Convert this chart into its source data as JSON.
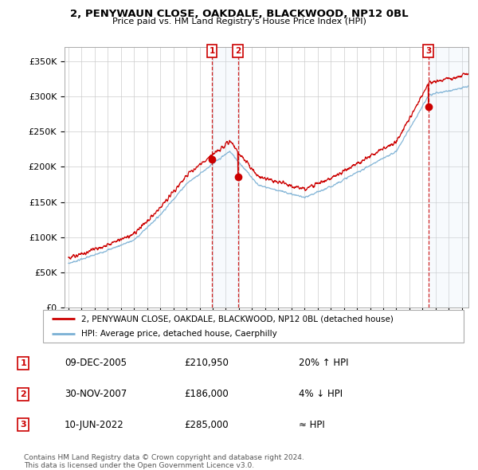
{
  "title": "2, PENYWAUN CLOSE, OAKDALE, BLACKWOOD, NP12 0BL",
  "subtitle": "Price paid vs. HM Land Registry's House Price Index (HPI)",
  "legend_line1": "2, PENYWAUN CLOSE, OAKDALE, BLACKWOOD, NP12 0BL (detached house)",
  "legend_line2": "HPI: Average price, detached house, Caerphilly",
  "footer": "Contains HM Land Registry data © Crown copyright and database right 2024.\nThis data is licensed under the Open Government Licence v3.0.",
  "transactions": [
    {
      "num": 1,
      "date": "09-DEC-2005",
      "price": 210950,
      "price_str": "£210,950",
      "relation": "20% ↑ HPI",
      "year": 2005.94
    },
    {
      "num": 2,
      "date": "30-NOV-2007",
      "price": 186000,
      "price_str": "£186,000",
      "relation": "4% ↓ HPI",
      "year": 2007.92
    },
    {
      "num": 3,
      "date": "10-JUN-2022",
      "price": 285000,
      "price_str": "£285,000",
      "relation": "≈ HPI",
      "year": 2022.44
    }
  ],
  "ylim": [
    0,
    370000
  ],
  "yticks": [
    0,
    50000,
    100000,
    150000,
    200000,
    250000,
    300000,
    350000
  ],
  "ytick_labels": [
    "£0",
    "£50K",
    "£100K",
    "£150K",
    "£200K",
    "£250K",
    "£300K",
    "£350K"
  ],
  "xlim_left": 1994.7,
  "xlim_right": 2025.5,
  "property_color": "#cc0000",
  "hpi_color": "#7ab0d4",
  "shade_color": "#d6e8f7",
  "transaction_box_color": "#cc0000",
  "background_color": "#ffffff",
  "grid_color": "#cccccc"
}
